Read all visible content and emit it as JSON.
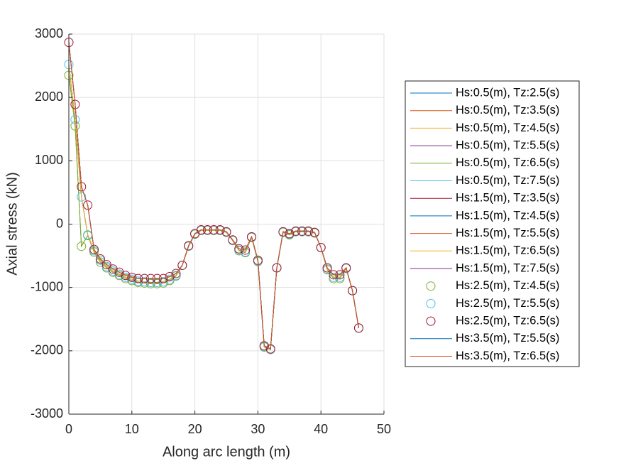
{
  "chart_data": {
    "type": "line",
    "xlabel": "Along arc length (m)",
    "ylabel": "Axial stress (kN)",
    "x": [
      0,
      1,
      2,
      3,
      4,
      5,
      6,
      7,
      8,
      9,
      10,
      11,
      12,
      13,
      14,
      15,
      16,
      17,
      18,
      19,
      20,
      21,
      22,
      23,
      24,
      25,
      26,
      27,
      28,
      29,
      30,
      31,
      32,
      33,
      34,
      35,
      36,
      37,
      38,
      39,
      40,
      41,
      42,
      43,
      44,
      45,
      46
    ],
    "xlim": [
      0,
      50
    ],
    "xticks": [
      0,
      10,
      20,
      30,
      40,
      50
    ],
    "ylim": [
      -3000,
      3000
    ],
    "yticks": [
      -3000,
      -2000,
      -1000,
      0,
      1000,
      2000,
      3000
    ],
    "grid": true,
    "legend": "outside-right",
    "series": [
      {
        "name": "Hs:0.5(m), Tz:2.5(s)",
        "color": "#0072BD",
        "style": "line",
        "values": [
          2350,
          1550,
          -350,
          -180,
          -440,
          -600,
          -690,
          -760,
          -810,
          -860,
          -890,
          -920,
          -930,
          -940,
          -940,
          -930,
          -890,
          -820,
          -650,
          -350,
          -160,
          -100,
          -100,
          -100,
          -100,
          -130,
          -260,
          -420,
          -450,
          -210,
          -590,
          -1940,
          -1980,
          -690,
          -130,
          -170,
          -120,
          -120,
          -120,
          -140,
          -370,
          -720,
          -860,
          -860,
          -700,
          -1050,
          -1640
        ]
      },
      {
        "name": "Hs:0.5(m), Tz:3.5(s)",
        "color": "#D95319",
        "style": "line",
        "values": [
          2520,
          1650,
          430,
          -170,
          -420,
          -570,
          -670,
          -740,
          -790,
          -840,
          -870,
          -900,
          -910,
          -920,
          -920,
          -910,
          -870,
          -810,
          -650,
          -345,
          -155,
          -95,
          -95,
          -95,
          -95,
          -125,
          -255,
          -410,
          -440,
          -205,
          -580,
          -1930,
          -1975,
          -690,
          -125,
          -160,
          -115,
          -115,
          -115,
          -135,
          -370,
          -710,
          -840,
          -840,
          -695,
          -1050,
          -1640
        ]
      },
      {
        "name": "Hs:0.5(m), Tz:4.5(s)",
        "color": "#EDB120",
        "style": "line",
        "values": [
          2350,
          1550,
          -350,
          -180,
          -440,
          -600,
          -690,
          -760,
          -810,
          -860,
          -890,
          -920,
          -930,
          -940,
          -940,
          -930,
          -890,
          -820,
          -650,
          -350,
          -160,
          -100,
          -100,
          -100,
          -100,
          -130,
          -260,
          -420,
          -450,
          -210,
          -590,
          -1940,
          -1980,
          -690,
          -130,
          -170,
          -120,
          -120,
          -120,
          -140,
          -370,
          -720,
          -860,
          -860,
          -700,
          -1050,
          -1640
        ]
      },
      {
        "name": "Hs:0.5(m), Tz:5.5(s)",
        "color": "#7E2F8E",
        "style": "line",
        "values": [
          2520,
          1650,
          430,
          -170,
          -420,
          -570,
          -670,
          -740,
          -790,
          -840,
          -870,
          -900,
          -910,
          -920,
          -920,
          -910,
          -870,
          -810,
          -650,
          -345,
          -155,
          -95,
          -95,
          -95,
          -95,
          -125,
          -255,
          -410,
          -440,
          -205,
          -580,
          -1930,
          -1975,
          -690,
          -125,
          -160,
          -115,
          -115,
          -115,
          -135,
          -370,
          -710,
          -840,
          -840,
          -695,
          -1050,
          -1640
        ]
      },
      {
        "name": "Hs:0.5(m), Tz:6.5(s)",
        "color": "#77AC30",
        "style": "line",
        "values": [
          2350,
          1550,
          -350,
          -180,
          -440,
          -600,
          -690,
          -760,
          -810,
          -860,
          -890,
          -920,
          -930,
          -940,
          -940,
          -930,
          -890,
          -820,
          -650,
          -350,
          -160,
          -100,
          -100,
          -100,
          -100,
          -130,
          -260,
          -420,
          -450,
          -210,
          -590,
          -1940,
          -1980,
          -690,
          -130,
          -170,
          -120,
          -120,
          -120,
          -140,
          -370,
          -720,
          -860,
          -860,
          -700,
          -1050,
          -1640
        ]
      },
      {
        "name": "Hs:0.5(m), Tz:7.5(s)",
        "color": "#4DBEEE",
        "style": "line",
        "values": [
          2520,
          1650,
          430,
          -170,
          -420,
          -570,
          -670,
          -740,
          -790,
          -840,
          -870,
          -900,
          -910,
          -920,
          -920,
          -910,
          -870,
          -810,
          -650,
          -345,
          -155,
          -95,
          -95,
          -95,
          -95,
          -125,
          -255,
          -410,
          -440,
          -205,
          -580,
          -1930,
          -1975,
          -690,
          -125,
          -160,
          -115,
          -115,
          -115,
          -135,
          -370,
          -710,
          -840,
          -840,
          -695,
          -1050,
          -1640
        ]
      },
      {
        "name": "Hs:1.5(m), Tz:3.5(s)",
        "color": "#A2142F",
        "style": "line",
        "values": [
          2870,
          1890,
          590,
          300,
          -400,
          -550,
          -640,
          -710,
          -760,
          -810,
          -840,
          -860,
          -860,
          -860,
          -860,
          -860,
          -830,
          -780,
          -650,
          -340,
          -150,
          -90,
          -90,
          -90,
          -90,
          -120,
          -250,
          -390,
          -410,
          -200,
          -570,
          -1920,
          -1970,
          -690,
          -120,
          -150,
          -110,
          -110,
          -110,
          -130,
          -370,
          -690,
          -800,
          -800,
          -690,
          -1050,
          -1640
        ]
      },
      {
        "name": "Hs:1.5(m), Tz:4.5(s)",
        "color": "#0072BD",
        "style": "line",
        "values": [
          2870,
          1890,
          590,
          300,
          -400,
          -550,
          -640,
          -710,
          -760,
          -810,
          -840,
          -860,
          -860,
          -860,
          -860,
          -860,
          -830,
          -780,
          -650,
          -340,
          -150,
          -90,
          -90,
          -90,
          -90,
          -120,
          -250,
          -390,
          -410,
          -200,
          -570,
          -1920,
          -1970,
          -690,
          -120,
          -150,
          -110,
          -110,
          -110,
          -130,
          -370,
          -690,
          -800,
          -800,
          -690,
          -1050,
          -1640
        ]
      },
      {
        "name": "Hs:1.5(m), Tz:5.5(s)",
        "color": "#D95319",
        "style": "line",
        "values": [
          2870,
          1890,
          590,
          300,
          -400,
          -550,
          -640,
          -710,
          -760,
          -810,
          -840,
          -860,
          -860,
          -860,
          -860,
          -860,
          -830,
          -780,
          -650,
          -340,
          -150,
          -90,
          -90,
          -90,
          -90,
          -120,
          -250,
          -390,
          -410,
          -200,
          -570,
          -1920,
          -1970,
          -690,
          -120,
          -150,
          -110,
          -110,
          -110,
          -130,
          -370,
          -690,
          -800,
          -800,
          -690,
          -1050,
          -1640
        ]
      },
      {
        "name": "Hs:1.5(m), Tz:6.5(s)",
        "color": "#EDB120",
        "style": "line",
        "values": [
          2520,
          1650,
          430,
          -170,
          -420,
          -570,
          -670,
          -740,
          -790,
          -840,
          -870,
          -900,
          -910,
          -920,
          -920,
          -910,
          -870,
          -810,
          -650,
          -345,
          -155,
          -95,
          -95,
          -95,
          -95,
          -125,
          -255,
          -410,
          -440,
          -205,
          -580,
          -1930,
          -1975,
          -690,
          -125,
          -160,
          -115,
          -115,
          -115,
          -135,
          -370,
          -710,
          -840,
          -840,
          -695,
          -1050,
          -1640
        ]
      },
      {
        "name": "Hs:1.5(m), Tz:7.5(s)",
        "color": "#7E2F8E",
        "style": "line",
        "values": [
          2870,
          1890,
          590,
          300,
          -400,
          -550,
          -640,
          -710,
          -760,
          -810,
          -840,
          -860,
          -860,
          -860,
          -860,
          -860,
          -830,
          -780,
          -650,
          -340,
          -150,
          -90,
          -90,
          -90,
          -90,
          -120,
          -250,
          -390,
          -410,
          -200,
          -570,
          -1920,
          -1970,
          -690,
          -120,
          -150,
          -110,
          -110,
          -110,
          -130,
          -370,
          -690,
          -800,
          -800,
          -690,
          -1050,
          -1640
        ]
      },
      {
        "name": "Hs:2.5(m), Tz:4.5(s)",
        "color": "#77AC30",
        "style": "marker",
        "values": [
          2350,
          1550,
          -350,
          -180,
          -440,
          -600,
          -690,
          -760,
          -810,
          -860,
          -890,
          -920,
          -930,
          -940,
          -940,
          -930,
          -890,
          -820,
          -650,
          -350,
          -160,
          -100,
          -100,
          -100,
          -100,
          -130,
          -260,
          -420,
          -450,
          -210,
          -590,
          -1940,
          -1980,
          -690,
          -130,
          -170,
          -120,
          -120,
          -120,
          -140,
          -370,
          -720,
          -860,
          -860,
          -700,
          -1050,
          -1640
        ]
      },
      {
        "name": "Hs:2.5(m), Tz:5.5(s)",
        "color": "#4DBEEE",
        "style": "marker",
        "values": [
          2520,
          1650,
          430,
          -170,
          -420,
          -570,
          -670,
          -740,
          -790,
          -840,
          -870,
          -900,
          -910,
          -920,
          -920,
          -910,
          -870,
          -810,
          -650,
          -345,
          -155,
          -95,
          -95,
          -95,
          -95,
          -125,
          -255,
          -410,
          -440,
          -205,
          -580,
          -1930,
          -1975,
          -690,
          -125,
          -160,
          -115,
          -115,
          -115,
          -135,
          -370,
          -710,
          -840,
          -840,
          -695,
          -1050,
          -1640
        ]
      },
      {
        "name": "Hs:2.5(m), Tz:6.5(s)",
        "color": "#A2142F",
        "style": "marker",
        "values": [
          2870,
          1890,
          590,
          300,
          -400,
          -550,
          -640,
          -710,
          -760,
          -810,
          -840,
          -860,
          -860,
          -860,
          -860,
          -860,
          -830,
          -780,
          -650,
          -340,
          -150,
          -90,
          -90,
          -90,
          -90,
          -120,
          -250,
          -390,
          -410,
          -200,
          -570,
          -1920,
          -1970,
          -690,
          -120,
          -150,
          -110,
          -110,
          -110,
          -130,
          -370,
          -690,
          -800,
          -800,
          -690,
          -1050,
          -1640
        ]
      },
      {
        "name": "Hs:3.5(m), Tz:5.5(s)",
        "color": "#0072BD",
        "style": "line",
        "values": [
          2870,
          1890,
          590,
          300,
          -400,
          -550,
          -640,
          -710,
          -760,
          -810,
          -840,
          -860,
          -860,
          -860,
          -860,
          -860,
          -830,
          -780,
          -650,
          -340,
          -150,
          -90,
          -90,
          -90,
          -90,
          -120,
          -250,
          -390,
          -410,
          -200,
          -570,
          -1920,
          -1970,
          -690,
          -120,
          -150,
          -110,
          -110,
          -110,
          -130,
          -370,
          -690,
          -800,
          -800,
          -690,
          -1050,
          -1640
        ]
      },
      {
        "name": "Hs:3.5(m), Tz:6.5(s)",
        "color": "#D95319",
        "style": "line",
        "values": [
          2870,
          1890,
          590,
          300,
          -400,
          -550,
          -640,
          -710,
          -760,
          -810,
          -840,
          -860,
          -860,
          -860,
          -860,
          -860,
          -830,
          -780,
          -650,
          -340,
          -150,
          -90,
          -90,
          -90,
          -90,
          -120,
          -250,
          -390,
          -410,
          -200,
          -570,
          -1920,
          -1970,
          -690,
          -120,
          -150,
          -110,
          -110,
          -110,
          -130,
          -370,
          -690,
          -800,
          -800,
          -690,
          -1050,
          -1640
        ]
      }
    ]
  }
}
